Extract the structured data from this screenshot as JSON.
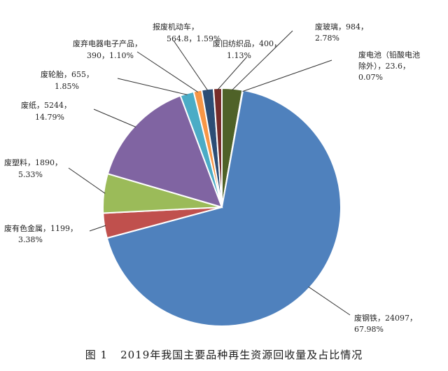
{
  "caption": {
    "figure_number": "图 1",
    "text": "2019年我国主要品种再生资源回收量及占比情况"
  },
  "chart_data": {
    "type": "pie",
    "start_angle_deg": 0,
    "direction": "clockwise",
    "slices": [
      {
        "name": "废玻璃",
        "value": 984,
        "percent": "2.78%",
        "color": "#4f6228",
        "label_lines": [
          "废玻璃，984，",
          "2.78%"
        ]
      },
      {
        "name": "废电池（铅酸电池除外）",
        "value": 23.6,
        "percent": "0.07%",
        "color": "#7b3294",
        "label_lines": [
          "废电池（铅酸电池",
          "除外），23.6，",
          "0.07%"
        ]
      },
      {
        "name": "废钢铁",
        "value": 24097,
        "percent": "67.98%",
        "color": "#4f81bd",
        "label_lines": [
          "废钢铁，24097，",
          "67.98%"
        ]
      },
      {
        "name": "废有色金属",
        "value": 1199,
        "percent": "3.38%",
        "color": "#c0504d",
        "label_lines": [
          "废有色金属，1199，",
          "3.38%"
        ]
      },
      {
        "name": "废塑料",
        "value": 1890,
        "percent": "5.33%",
        "color": "#9bbb59",
        "label_lines": [
          "废塑料，1890，",
          "5.33%"
        ]
      },
      {
        "name": "废纸",
        "value": 5244,
        "percent": "14.79%",
        "color": "#8064a2",
        "label_lines": [
          "废纸，5244，",
          "14.79%"
        ]
      },
      {
        "name": "废轮胎",
        "value": 655,
        "percent": "1.85%",
        "color": "#4bacc6",
        "label_lines": [
          "废轮胎，655，",
          "1.85%"
        ]
      },
      {
        "name": "废弃电器电子产品",
        "value": 390,
        "percent": "1.10%",
        "color": "#f79646",
        "label_lines": [
          "废弃电器电子产品，",
          "390，1.10%"
        ]
      },
      {
        "name": "报废机动车",
        "value": 564.8,
        "percent": "1.59%",
        "color": "#2c4d75",
        "label_lines": [
          "报废机动车，",
          "564.8，1.59%"
        ]
      },
      {
        "name": "废旧纺织品",
        "value": 400,
        "percent": "1.13%",
        "color": "#772c2a",
        "label_lines": [
          "废旧纺织品，400，",
          "1.13%"
        ]
      }
    ]
  }
}
